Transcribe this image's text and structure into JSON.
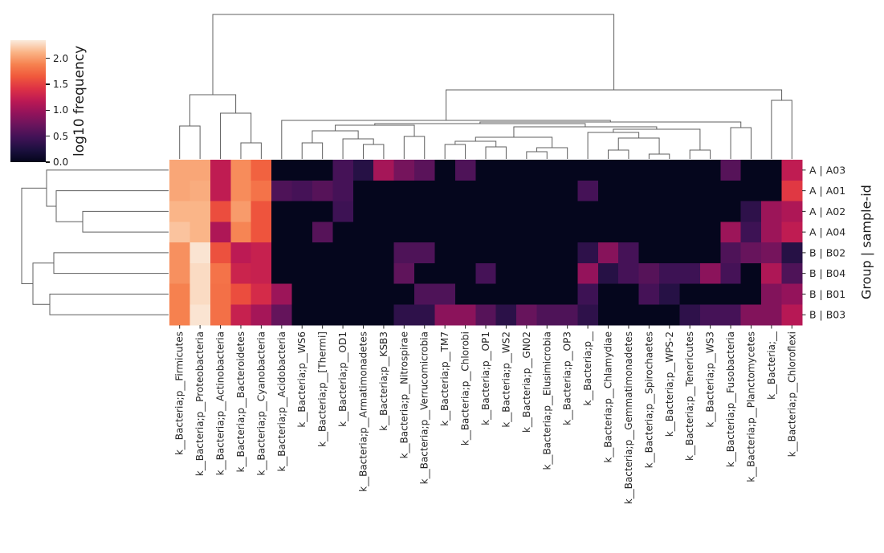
{
  "figure_type": "seaborn-clustermap",
  "colorbar": {
    "label": "log10 frequency",
    "vmin": 0.0,
    "vmax": 2.35,
    "ticks": [
      {
        "label": "2.0",
        "value": 2.0
      },
      {
        "label": "1.5",
        "value": 1.5
      },
      {
        "label": "1.0",
        "value": 1.0
      },
      {
        "label": "0.5",
        "value": 0.5
      },
      {
        "label": "0.0",
        "value": 0.0
      }
    ]
  },
  "chart_data": {
    "type": "heatmap",
    "title": "",
    "value_label": "log10 frequency",
    "row_axis_label": "Group | sample-id",
    "rows": [
      "A | A03",
      "A | A01",
      "A | A02",
      "A | A04",
      "B | B02",
      "B | B04",
      "B | B01",
      "B | B03"
    ],
    "columns": [
      "k__Bacteria;p__Firmicutes",
      "k__Bacteria;p__Proteobacteria",
      "k__Bacteria;p__Actinobacteria",
      "k__Bacteria;p__Bacteroidetes",
      "k__Bacteria;p__Cyanobacteria",
      "k__Bacteria;p__Acidobacteria",
      "k__Bacteria;p__WS6",
      "k__Bacteria;p__[Thermi]",
      "k__Bacteria;p__OD1",
      "k__Bacteria;p__Armatimonadetes",
      "k__Bacteria;p__KSB3",
      "k__Bacteria;p__Nitrospirae",
      "k__Bacteria;p__Verrucomicrobia",
      "k__Bacteria;p__TM7",
      "k__Bacteria;p__Chlorobi",
      "k__Bacteria;p__OP1",
      "k__Bacteria;p__WS2",
      "k__Bacteria;p__GN02",
      "k__Bacteria;p__Elusimicrobia",
      "k__Bacteria;p__OP3",
      "k__Bacteria;p__",
      "k__Bacteria;p__Chlamydiae",
      "k__Bacteria;p__Gemmatimonadetes",
      "k__Bacteria;p__Spirochaetes",
      "k__Bacteria;p__WPS-2",
      "k__Bacteria;p__Tenericutes",
      "k__Bacteria;p__WS3",
      "k__Bacteria;p__Fusobacteria",
      "k__Bacteria;p__Planctomycetes",
      "k__Bacteria;__",
      "k__Bacteria;p__Chloroflexi"
    ],
    "values": [
      [
        2.05,
        2.05,
        1.2,
        1.93,
        1.7,
        0.02,
        0.02,
        0.02,
        0.5,
        0.3,
        1.05,
        0.78,
        0.62,
        0.02,
        0.55,
        0.02,
        0.02,
        0.02,
        0.02,
        0.02,
        0.02,
        0.02,
        0.02,
        0.02,
        0.02,
        0.02,
        0.02,
        0.6,
        0.02,
        0.02,
        1.2
      ],
      [
        2.05,
        2.08,
        1.2,
        1.93,
        1.8,
        0.55,
        0.5,
        0.6,
        0.5,
        0.02,
        0.02,
        0.02,
        0.02,
        0.02,
        0.02,
        0.02,
        0.02,
        0.02,
        0.02,
        0.02,
        0.5,
        0.02,
        0.02,
        0.02,
        0.02,
        0.02,
        0.02,
        0.02,
        0.02,
        0.02,
        1.45
      ],
      [
        2.12,
        2.12,
        1.58,
        2.0,
        1.62,
        0.02,
        0.02,
        0.02,
        0.45,
        0.02,
        0.02,
        0.02,
        0.02,
        0.02,
        0.02,
        0.02,
        0.02,
        0.02,
        0.02,
        0.02,
        0.02,
        0.02,
        0.02,
        0.02,
        0.02,
        0.02,
        0.02,
        0.02,
        0.35,
        1.0,
        1.1
      ],
      [
        2.18,
        2.12,
        1.1,
        1.9,
        1.62,
        0.02,
        0.02,
        0.6,
        0.02,
        0.02,
        0.02,
        0.02,
        0.02,
        0.02,
        0.02,
        0.02,
        0.02,
        0.02,
        0.02,
        0.02,
        0.02,
        0.02,
        0.02,
        0.02,
        0.02,
        0.02,
        0.02,
        1.0,
        0.45,
        1.0,
        1.2
      ],
      [
        1.95,
        2.32,
        1.6,
        1.18,
        1.25,
        0.02,
        0.02,
        0.02,
        0.02,
        0.02,
        0.02,
        0.55,
        0.55,
        0.02,
        0.02,
        0.02,
        0.02,
        0.02,
        0.02,
        0.02,
        0.35,
        0.88,
        0.5,
        0.02,
        0.02,
        0.02,
        0.02,
        0.55,
        0.7,
        0.78,
        0.3
      ],
      [
        1.95,
        2.28,
        1.8,
        1.28,
        1.25,
        0.02,
        0.02,
        0.02,
        0.02,
        0.02,
        0.02,
        0.65,
        0.02,
        0.02,
        0.02,
        0.5,
        0.02,
        0.02,
        0.02,
        0.02,
        0.95,
        0.3,
        0.5,
        0.6,
        0.45,
        0.45,
        0.9,
        0.5,
        0.02,
        1.1,
        0.55
      ],
      [
        1.88,
        2.28,
        1.78,
        1.58,
        1.35,
        1.0,
        0.02,
        0.02,
        0.02,
        0.02,
        0.02,
        0.02,
        0.55,
        0.55,
        0.02,
        0.02,
        0.02,
        0.02,
        0.02,
        0.02,
        0.45,
        0.02,
        0.02,
        0.5,
        0.3,
        0.02,
        0.02,
        0.02,
        0.02,
        0.85,
        0.95
      ],
      [
        1.88,
        2.32,
        1.78,
        1.25,
        1.05,
        0.68,
        0.02,
        0.02,
        0.02,
        0.02,
        0.02,
        0.35,
        0.35,
        0.9,
        0.9,
        0.6,
        0.33,
        0.7,
        0.55,
        0.55,
        0.35,
        0.02,
        0.02,
        0.02,
        0.02,
        0.35,
        0.5,
        0.5,
        0.85,
        0.85,
        1.15
      ]
    ],
    "colormap": "rocket",
    "colormap_stops": [
      [
        0.0,
        3,
        5,
        26
      ],
      [
        0.1,
        28,
        16,
        63
      ],
      [
        0.2,
        64,
        18,
        86
      ],
      [
        0.3,
        104,
        20,
        92
      ],
      [
        0.4,
        146,
        19,
        91
      ],
      [
        0.5,
        187,
        25,
        84
      ],
      [
        0.6,
        221,
        49,
        69
      ],
      [
        0.7,
        240,
        88,
        60
      ],
      [
        0.8,
        246,
        129,
        79
      ],
      [
        0.9,
        250,
        180,
        134
      ],
      [
        1.0,
        250,
        235,
        221
      ]
    ],
    "legend_position": "upper-left colorbar",
    "grid": false,
    "line_color": "#5f5f5f",
    "text_color": "#262626",
    "background": "#ffffff",
    "col_dendrogram": {
      "h": 18,
      "c": [
        {
          "h": 118,
          "c": [
            {
              "h": 157,
              "c": [
                0,
                1
              ]
            },
            {
              "h": 141,
              "c": [
                2,
                {
                  "h": 178,
                  "c": [
                    3,
                    4
                  ]
                }
              ]
            }
          ]
        },
        {
          "h": 112,
          "c": [
            {
              "h": 150,
              "c": [
                5,
                {
                  "h": 152,
                  "c": [
                    {
                      "h": 154,
                      "c": [
                        {
                          "h": 156,
                          "c": [
                            {
                              "h": 163,
                              "c": [
                                {
                                  "h": 178,
                                  "c": [
                                    6,
                                    7
                                  ]
                                },
                                {
                                  "h": 173,
                                  "c": [
                                    8,
                                    {
                                      "h": 180,
                                      "c": [
                                        9,
                                        10
                                      ]
                                    }
                                  ]
                                }
                              ]
                            },
                            {
                              "h": 170,
                              "c": [
                                11,
                                12
                              ]
                            }
                          ]
                        },
                        {
                          "h": 158,
                          "c": [
                            {
                              "h": 171,
                              "c": [
                                {
                                  "h": 176,
                                  "c": [
                                    {
                                      "h": 180,
                                      "c": [
                                        13,
                                        14
                                      ]
                                    },
                                    {
                                      "h": 183,
                                      "c": [
                                        15,
                                        16
                                      ]
                                    }
                                  ]
                                },
                                {
                                  "h": 184,
                                  "c": [
                                    {
                                      "h": 189,
                                      "c": [
                                        17,
                                        18
                                      ]
                                    },
                                    19
                                  ]
                                }
                              ]
                            },
                            {
                              "h": 161,
                              "c": [
                                {
                                  "h": 165,
                                  "c": [
                                    20,
                                    {
                                      "h": 172,
                                      "c": [
                                        {
                                          "h": 187,
                                          "c": [
                                            21,
                                            22
                                          ]
                                        },
                                        {
                                          "h": 192,
                                          "c": [
                                            23,
                                            24
                                          ]
                                        }
                                      ]
                                    }
                                  ]
                                },
                                {
                                  "h": 187,
                                  "c": [
                                    25,
                                    26
                                  ]
                                }
                              ]
                            }
                          ]
                        }
                      ]
                    },
                    {
                      "h": 159,
                      "c": [
                        27,
                        28
                      ]
                    }
                  ]
                }
              ]
            },
            {
              "h": 125,
              "c": [
                29,
                30
              ]
            }
          ]
        }
      ]
    },
    "row_dendrogram": {
      "h": 27,
      "c": [
        {
          "h": 58,
          "c": [
            0,
            {
              "h": 70,
              "c": [
                1,
                {
                  "h": 103,
                  "c": [
                    2,
                    3
                  ]
                }
              ]
            }
          ]
        },
        {
          "h": 41,
          "c": [
            {
              "h": 67,
              "c": [
                4,
                5
              ]
            },
            {
              "h": 62,
              "c": [
                6,
                7
              ]
            }
          ]
        }
      ]
    }
  }
}
